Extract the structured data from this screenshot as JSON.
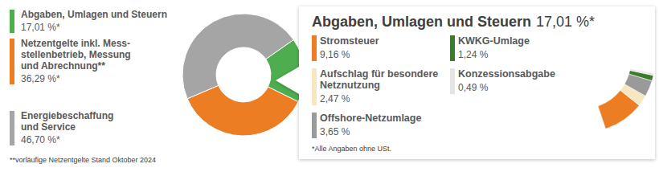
{
  "chart_data": [
    {
      "type": "pie",
      "categories": [
        "Abgaben, Umlagen und Steuern",
        "Netzentgelte inkl. Mess-\nstellenbetrieb, Messung\nund Abrechnung**",
        "Energiebeschaffung\nund Service"
      ],
      "values": [
        17.01,
        36.29,
        46.7
      ],
      "value_labels": [
        "17,01 %*",
        "36,29 %*",
        "46,70 %*"
      ],
      "colors": [
        "#4ead4f",
        "#ec7d22",
        "#a5a5a5"
      ],
      "annotations": [
        "**vorläufige Netzentgelte Stand Oktober 2024"
      ]
    },
    {
      "type": "pie",
      "title": "Abgaben, Umlagen und Steuern",
      "subtitle": "17,01 %*",
      "categories": [
        "Stromsteuer",
        "Aufschlag für besondere\nNetznutzung",
        "Offshore-Netzumlage",
        "KWKG-Umlage",
        "Konzessionsabgabe"
      ],
      "values": [
        9.16,
        2.47,
        3.65,
        1.24,
        0.49
      ],
      "value_labels": [
        "9,16 %",
        "2,47 %",
        "3,65 %",
        "1,24 %",
        "0,49 %"
      ],
      "colors": [
        "#ec7d22",
        "#f6e7c1",
        "#9a9a9a",
        "#3c7a2e",
        "#e4e4e4"
      ],
      "annotations": [
        "*Alle Angaben ohne USt."
      ]
    }
  ]
}
